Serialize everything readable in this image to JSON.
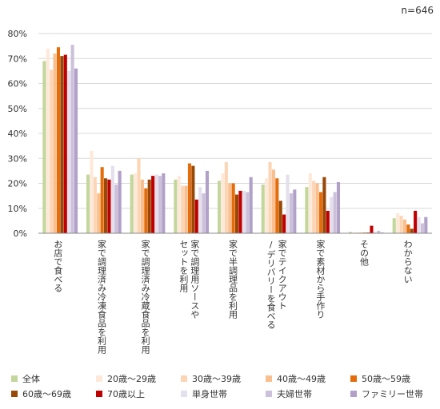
{
  "header": {
    "sample_size": "n=646"
  },
  "chart_data": {
    "type": "bar",
    "title": "",
    "xlabel": "",
    "ylabel": "",
    "ylim": [
      0,
      80
    ],
    "yticks": [
      "0%",
      "10%",
      "20%",
      "30%",
      "40%",
      "50%",
      "60%",
      "70%",
      "80%"
    ],
    "grid": true,
    "legend_position": "bottom",
    "categories": [
      "お店で食べる",
      "家で調理済み冷凍食品を利用",
      "家で調理済み冷蔵食品を利用",
      "家で調理用ソースやセットを利用",
      "家で半調理品を利用",
      "家でテイクアウト/デリバリーを食べる",
      "家で素材から手作り",
      "その他",
      "わからない"
    ],
    "category_lines": [
      [
        "お店で食べる"
      ],
      [
        "家で調理済み冷凍食品を利用"
      ],
      [
        "家で調理済み冷蔵食品を利用"
      ],
      [
        "家で調理用ソースや",
        "セットを利用"
      ],
      [
        "家で半調理品を利用"
      ],
      [
        "家でテイクアウト",
        "/デリバリーを食べる"
      ],
      [
        "家で素材から手作り"
      ],
      [
        "その他"
      ],
      [
        "わからない"
      ]
    ],
    "series": [
      {
        "name": "全体",
        "color": "#c3d69b",
        "values": [
          69,
          23.5,
          23.5,
          21.5,
          21,
          19.5,
          18.5,
          0.5,
          6
        ]
      },
      {
        "name": "20歳～29歳",
        "color": "#fde9d9",
        "values": [
          74,
          33,
          24,
          23,
          24,
          22,
          24,
          0.3,
          8
        ]
      },
      {
        "name": "30歳～39歳",
        "color": "#fcd5b4",
        "values": [
          65.5,
          22.5,
          30,
          19,
          28.5,
          28.5,
          21,
          0.3,
          7
        ]
      },
      {
        "name": "40歳～49歳",
        "color": "#fabf8f",
        "values": [
          72,
          16,
          21.5,
          19,
          20,
          25.5,
          20,
          0.3,
          5.5
        ]
      },
      {
        "name": "50歳～59歳",
        "color": "#e46c0a",
        "values": [
          74.5,
          26.5,
          18,
          28,
          20,
          22,
          16.5,
          0.3,
          3.5
        ]
      },
      {
        "name": "60歳～69歳",
        "color": "#984807",
        "values": [
          71,
          22,
          21.5,
          27,
          15.5,
          13,
          22.5,
          0.3,
          1.8
        ]
      },
      {
        "name": "70歳以上",
        "color": "#c00000",
        "values": [
          71.5,
          21.5,
          23,
          13.5,
          17,
          7.5,
          9,
          3,
          9
        ]
      },
      {
        "name": "単身世帯",
        "color": "#e4dfec",
        "values": [
          65,
          27,
          23.5,
          18.5,
          17,
          23.5,
          14.5,
          0.5,
          6.5
        ]
      },
      {
        "name": "夫婦世帯",
        "color": "#ccc0da",
        "values": [
          75.5,
          19.5,
          23,
          16,
          16.5,
          16,
          16.5,
          1,
          4
        ]
      },
      {
        "name": "ファミリー世帯",
        "color": "#b1a0c7",
        "values": [
          66,
          25,
          24,
          25,
          22.5,
          17.5,
          20.5,
          0.3,
          6.5
        ]
      }
    ]
  }
}
